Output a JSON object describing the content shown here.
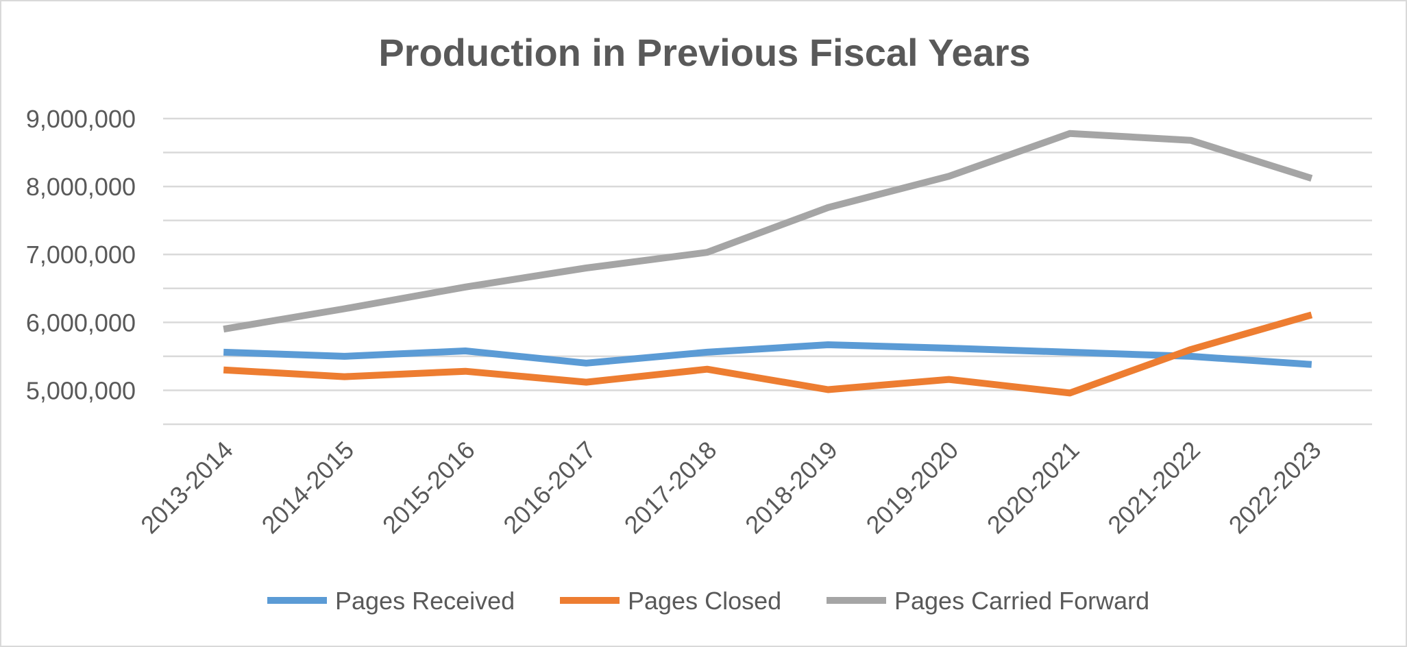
{
  "chart_data": {
    "type": "line",
    "title": "Production in Previous Fiscal Years",
    "xlabel": "",
    "ylabel": "",
    "categories": [
      "2013-2014",
      "2014-2015",
      "2015-2016",
      "2016-2017",
      "2017-2018",
      "2018-2019",
      "2019-2020",
      "2020-2021",
      "2021-2022",
      "2022-2023"
    ],
    "y_ticks": [
      {
        "value": 5000000,
        "label": "5,000,000"
      },
      {
        "value": 6000000,
        "label": "6,000,000"
      },
      {
        "value": 7000000,
        "label": "7,000,000"
      },
      {
        "value": 8000000,
        "label": "8,000,000"
      },
      {
        "value": 9000000,
        "label": "9,000,000"
      }
    ],
    "ylim": [
      4500000,
      9000000
    ],
    "grid_step": 500000,
    "grid": true,
    "legend_position": "bottom",
    "series": [
      {
        "name": "Pages Received",
        "color": "#5b9bd5",
        "values": [
          5560000,
          5500000,
          5580000,
          5400000,
          5560000,
          5670000,
          5620000,
          5560000,
          5500000,
          5380000
        ]
      },
      {
        "name": "Pages Closed",
        "color": "#ed7d31",
        "values": [
          5300000,
          5200000,
          5280000,
          5120000,
          5310000,
          5010000,
          5160000,
          4960000,
          5600000,
          6110000
        ]
      },
      {
        "name": "Pages Carried Forward",
        "color": "#a5a5a5",
        "values": [
          5900000,
          6200000,
          6520000,
          6800000,
          7030000,
          7690000,
          8150000,
          8780000,
          8680000,
          8120000
        ]
      }
    ]
  }
}
